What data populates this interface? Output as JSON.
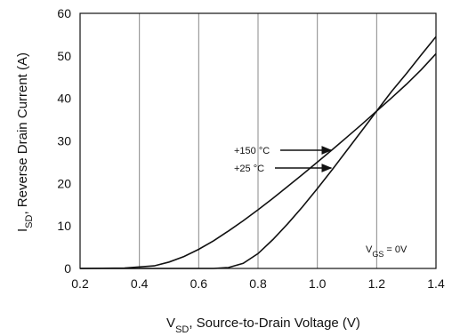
{
  "chart_data": {
    "type": "line",
    "title": "",
    "xlabel": {
      "main": "V",
      "sub": "SD",
      "rest": ", Source-to-Drain Voltage (V)"
    },
    "ylabel": {
      "main": "I",
      "sub": "SD",
      "rest": ", Reverse Drain Current (A)"
    },
    "xlim": [
      0.2,
      1.4
    ],
    "ylim": [
      0,
      60
    ],
    "xticks": [
      "0.2",
      "0.4",
      "0.6",
      "0.8",
      "1.0",
      "1.2",
      "1.4"
    ],
    "yticks": [
      "0",
      "10",
      "20",
      "30",
      "40",
      "50",
      "60"
    ],
    "grid": "vertical",
    "series": [
      {
        "name": "+150 °C",
        "points": [
          [
            0.2,
            0
          ],
          [
            0.35,
            0.1
          ],
          [
            0.45,
            0.6
          ],
          [
            0.5,
            1.5
          ],
          [
            0.55,
            2.8
          ],
          [
            0.6,
            4.5
          ],
          [
            0.65,
            6.5
          ],
          [
            0.7,
            8.8
          ],
          [
            0.75,
            11.2
          ],
          [
            0.8,
            13.8
          ],
          [
            0.85,
            16.5
          ],
          [
            0.9,
            19.3
          ],
          [
            0.95,
            22.1
          ],
          [
            1.0,
            25.0
          ],
          [
            1.05,
            27.9
          ],
          [
            1.1,
            30.9
          ],
          [
            1.15,
            33.9
          ],
          [
            1.2,
            37.0
          ],
          [
            1.25,
            40.1
          ],
          [
            1.3,
            43.3
          ],
          [
            1.35,
            46.7
          ],
          [
            1.4,
            50.5
          ]
        ]
      },
      {
        "name": "+25 °C",
        "points": [
          [
            0.2,
            0
          ],
          [
            0.6,
            0
          ],
          [
            0.65,
            0
          ],
          [
            0.7,
            0.2
          ],
          [
            0.75,
            1.2
          ],
          [
            0.8,
            3.5
          ],
          [
            0.85,
            6.8
          ],
          [
            0.9,
            10.5
          ],
          [
            0.95,
            14.5
          ],
          [
            1.0,
            18.8
          ],
          [
            1.05,
            23.2
          ],
          [
            1.1,
            27.8
          ],
          [
            1.15,
            32.4
          ],
          [
            1.2,
            37.0
          ],
          [
            1.25,
            41.6
          ],
          [
            1.3,
            45.8
          ],
          [
            1.35,
            50.2
          ],
          [
            1.4,
            54.5
          ]
        ]
      }
    ],
    "annotations": {
      "hot_label": "+150 °C",
      "cold_label": "+25 °C",
      "vgs_main": "V",
      "vgs_sub": "GS",
      "vgs_rest": " = 0V"
    },
    "arrows": [
      {
        "label": "+150 °C",
        "target": [
          1.05,
          27.9
        ]
      },
      {
        "label": "+25 °C",
        "target": [
          1.05,
          23.2
        ]
      }
    ]
  }
}
